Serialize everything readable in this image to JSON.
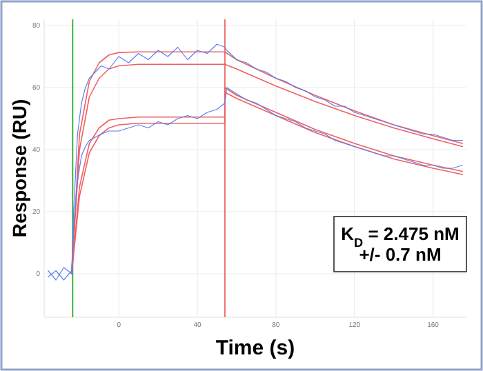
{
  "chart_data": {
    "type": "line",
    "xlabel": "Time (s)",
    "ylabel": "Response (RU)",
    "xlim": [
      -38,
      177
    ],
    "ylim": [
      -14,
      82
    ],
    "xticks": [
      0,
      40,
      80,
      120,
      160
    ],
    "yticks": [
      0,
      20,
      40,
      60,
      80
    ],
    "grid": true,
    "marker": "none",
    "line_style": "solid",
    "ref_lines": [
      {
        "axis": "x",
        "value": -23.5,
        "color": "#3cb043"
      },
      {
        "axis": "x",
        "value": 54,
        "color": "#f07070"
      }
    ],
    "annotations": [
      "K$_{D}$ = 2.475 nM",
      "+/- 0.7 nM"
    ],
    "series": [
      {
        "color": "#5b7ff0",
        "x": [
          -36,
          -32,
          -28,
          -24,
          -23,
          -21,
          -19,
          -17,
          -15,
          -12,
          -9,
          -5,
          0,
          5,
          10,
          15,
          20,
          25,
          30,
          35,
          40,
          45,
          50,
          54,
          55,
          60,
          65,
          70,
          75,
          80,
          85,
          90,
          95,
          100,
          105,
          110,
          115,
          120,
          125,
          130,
          135,
          140,
          145,
          150,
          155,
          160,
          165,
          170,
          175
        ],
        "values": [
          1,
          -2,
          2,
          0,
          20,
          45,
          55,
          60,
          63,
          65,
          67,
          66,
          70,
          68,
          71,
          69,
          72,
          70,
          73,
          69,
          72,
          71,
          74,
          73,
          72,
          69,
          68,
          66,
          65,
          63,
          62,
          60,
          59,
          57,
          56,
          54,
          54,
          52,
          51,
          50,
          49,
          48,
          47,
          46,
          45,
          45,
          44,
          43,
          43
        ]
      },
      {
        "color": "#5b7ff0",
        "x": [
          -36,
          -32,
          -28,
          -24,
          -23,
          -21,
          -19,
          -17,
          -15,
          -12,
          -9,
          -5,
          0,
          5,
          10,
          15,
          20,
          25,
          30,
          35,
          40,
          45,
          50,
          54,
          55,
          60,
          65,
          70,
          75,
          80,
          85,
          90,
          95,
          100,
          105,
          110,
          115,
          120,
          125,
          130,
          135,
          140,
          145,
          150,
          155,
          160,
          165,
          170,
          175
        ],
        "values": [
          -1,
          1,
          -2,
          1,
          15,
          30,
          38,
          41,
          43,
          44,
          45,
          46,
          46,
          47,
          48,
          47,
          49,
          48,
          50,
          51,
          50,
          52,
          53,
          55,
          60,
          58,
          56,
          55,
          53,
          51,
          50,
          49,
          47,
          46,
          45,
          43,
          42,
          41,
          40,
          39,
          38,
          38,
          37,
          36,
          35,
          35,
          34,
          34,
          35
        ]
      },
      {
        "color": "#f06060",
        "x": [
          -24,
          -20,
          -15,
          -10,
          -5,
          0,
          10,
          54,
          60,
          80,
          100,
          120,
          140,
          160,
          175
        ],
        "values": [
          0,
          45,
          62,
          68,
          70.5,
          71.3,
          71.5,
          71.5,
          69,
          63,
          57.5,
          52.5,
          48,
          44.5,
          42
        ]
      },
      {
        "color": "#f06060",
        "x": [
          -24,
          -20,
          -15,
          -10,
          -5,
          0,
          10,
          54,
          60,
          80,
          100,
          120,
          140,
          160,
          175
        ],
        "values": [
          0,
          40,
          57,
          63,
          66,
          67,
          67.5,
          67.5,
          66,
          60.5,
          55.5,
          51,
          47,
          43.5,
          41
        ]
      },
      {
        "color": "#f06060",
        "x": [
          -24,
          -20,
          -15,
          -10,
          -5,
          0,
          10,
          54,
          54,
          60,
          80,
          100,
          120,
          140,
          160,
          175
        ],
        "values": [
          0,
          28,
          42,
          47,
          49.5,
          50,
          50.5,
          50.5,
          60,
          57.5,
          52,
          46.5,
          42,
          38,
          35,
          33
        ]
      },
      {
        "color": "#f06060",
        "x": [
          -24,
          -20,
          -15,
          -10,
          -5,
          0,
          10,
          54,
          54,
          60,
          80,
          100,
          120,
          140,
          160,
          175
        ],
        "values": [
          0,
          25,
          39,
          44.5,
          47,
          48,
          48.5,
          48.5,
          58.5,
          56.5,
          51,
          45.5,
          41,
          37,
          34,
          32
        ]
      }
    ]
  }
}
